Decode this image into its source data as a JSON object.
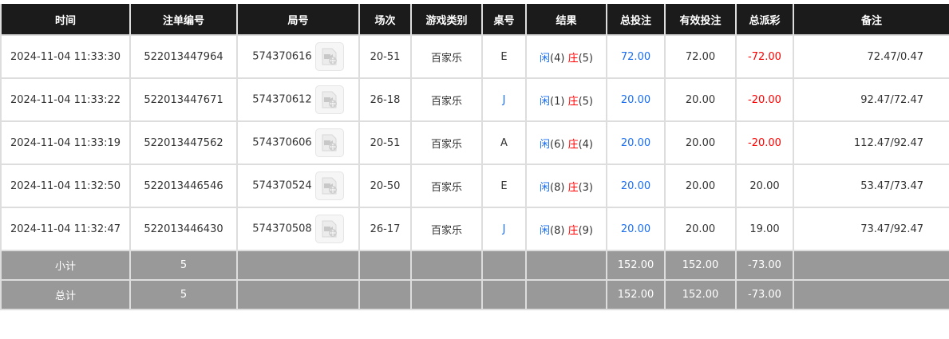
{
  "headers": [
    "时间",
    "注单编号",
    "局号",
    "场次",
    "游戏类别",
    "桌号",
    "结果",
    "总投注",
    "有效投注",
    "总派彩",
    "备注"
  ],
  "rows": [
    {
      "time": "2024-11-04 11:33:30",
      "bet_id": "522013447964",
      "round": "574370616",
      "session": "20-51",
      "game": "百家乐",
      "table": "E",
      "player": "闲",
      "player_score": "(4)",
      "banker": "庄",
      "banker_score": "(5)",
      "total_bet": "72.00",
      "valid_bet": "72.00",
      "payout": "-72.00",
      "payout_negative": true,
      "note": "72.47/0.47"
    },
    {
      "time": "2024-11-04 11:33:22",
      "bet_id": "522013447671",
      "round": "574370612",
      "session": "26-18",
      "game": "百家乐",
      "table": "J",
      "player": "闲",
      "player_score": "(1)",
      "banker": "庄",
      "banker_score": "(5)",
      "total_bet": "20.00",
      "valid_bet": "20.00",
      "payout": "-20.00",
      "payout_negative": true,
      "note": "92.47/72.47"
    },
    {
      "time": "2024-11-04 11:33:19",
      "bet_id": "522013447562",
      "round": "574370606",
      "session": "20-51",
      "game": "百家乐",
      "table": "A",
      "player": "闲",
      "player_score": "(6)",
      "banker": "庄",
      "banker_score": "(4)",
      "total_bet": "20.00",
      "valid_bet": "20.00",
      "payout": "-20.00",
      "payout_negative": true,
      "note": "112.47/92.47"
    },
    {
      "time": "2024-11-04 11:32:50",
      "bet_id": "522013446546",
      "round": "574370524",
      "session": "20-50",
      "game": "百家乐",
      "table": "E",
      "player": "闲",
      "player_score": "(8)",
      "banker": "庄",
      "banker_score": "(3)",
      "total_bet": "20.00",
      "valid_bet": "20.00",
      "payout": "20.00",
      "payout_negative": false,
      "note": "53.47/73.47"
    },
    {
      "time": "2024-11-04 11:32:47",
      "bet_id": "522013446430",
      "round": "574370508",
      "session": "26-17",
      "game": "百家乐",
      "table": "J",
      "player": "闲",
      "player_score": "(8)",
      "banker": "庄",
      "banker_score": "(9)",
      "total_bet": "20.00",
      "valid_bet": "20.00",
      "payout": "19.00",
      "payout_negative": false,
      "note": "73.47/92.47"
    }
  ],
  "subtotal": {
    "label": "小计",
    "count": "5",
    "total_bet": "152.00",
    "valid_bet": "152.00",
    "payout": "-73.00"
  },
  "total": {
    "label": "总计",
    "count": "5",
    "total_bet": "152.00",
    "valid_bet": "152.00",
    "payout": "-73.00"
  },
  "colors": {
    "header_bg": "#1b1b1b",
    "summary_bg": "#999999",
    "blue": "#1a6df5",
    "red": "#ff0000"
  }
}
